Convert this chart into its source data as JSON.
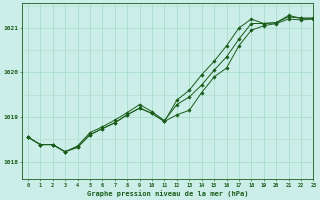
{
  "title": "Graphe pression niveau de la mer (hPa)",
  "bg_color": "#cceee8",
  "grid_color": "#aaddcc",
  "line_color": "#1a5c1a",
  "xlim": [
    -0.5,
    23
  ],
  "ylim": [
    1017.6,
    1021.55
  ],
  "xticks": [
    0,
    1,
    2,
    3,
    4,
    5,
    6,
    7,
    8,
    9,
    10,
    11,
    12,
    13,
    14,
    15,
    16,
    17,
    18,
    19,
    20,
    21,
    22,
    23
  ],
  "yticks": [
    1018,
    1019,
    1020,
    1021
  ],
  "series1": [
    1018.55,
    1018.38,
    1018.38,
    1018.22,
    1018.32,
    1018.6,
    1018.74,
    1018.87,
    1019.05,
    1019.2,
    1019.08,
    1018.9,
    1019.05,
    1019.15,
    1019.55,
    1019.9,
    1020.1,
    1020.6,
    1020.95,
    1021.05,
    1021.1,
    1021.2,
    1021.18,
    1021.2
  ],
  "series2": [
    1018.55,
    1018.38,
    1018.38,
    1018.22,
    1018.35,
    1018.65,
    1018.78,
    1018.93,
    1019.1,
    1019.28,
    1019.12,
    1018.92,
    1019.28,
    1019.45,
    1019.72,
    1020.05,
    1020.35,
    1020.75,
    1021.1,
    1021.1,
    1021.12,
    1021.25,
    1021.22,
    1021.22
  ],
  "series3": [
    1018.55,
    1018.38,
    1018.38,
    1018.22,
    1018.32,
    1018.6,
    1018.74,
    1018.87,
    1019.05,
    1019.2,
    1019.08,
    1018.9,
    1019.38,
    1019.6,
    1019.95,
    1020.25,
    1020.6,
    1021.0,
    1021.2,
    1021.1,
    1021.12,
    1021.28,
    1021.22,
    1021.22
  ]
}
